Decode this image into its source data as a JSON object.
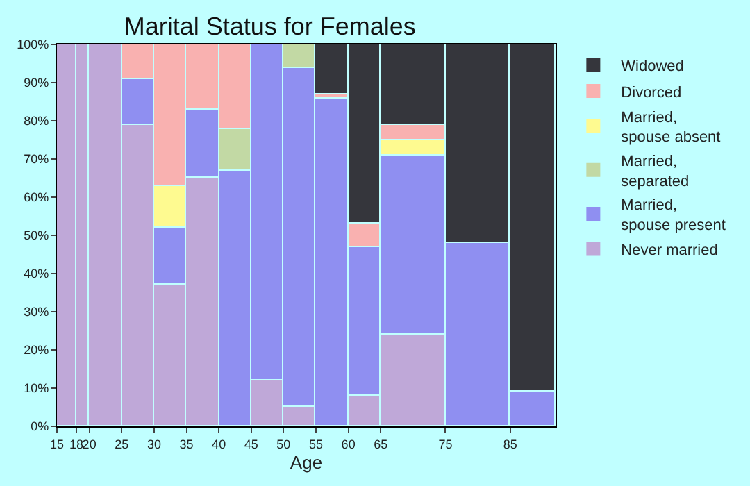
{
  "chart_data": {
    "type": "bar",
    "title": "Marital Status for Females",
    "xlabel": "Age",
    "stacked": true,
    "x": [
      16.5,
      19,
      22.5,
      27.5,
      32.5,
      37.5,
      42.5,
      47.5,
      52.5,
      57.5,
      62.5,
      70,
      80,
      88.5
    ],
    "series": [
      {
        "name": "Never married",
        "color": "#bfa8d8",
        "values": [
          100,
          100,
          100,
          79,
          37,
          65,
          null,
          12,
          5,
          null,
          8,
          24,
          null,
          null
        ]
      },
      {
        "name": "Married, spouse present",
        "color": "#8f8ff1",
        "values": [
          null,
          null,
          null,
          12,
          15,
          18,
          67,
          88,
          89,
          86,
          39,
          47,
          48,
          9
        ]
      },
      {
        "name": "Married, separated",
        "color": "#c2d9a4",
        "values": [
          null,
          null,
          null,
          null,
          null,
          null,
          11,
          null,
          6,
          null,
          null,
          null,
          null,
          null
        ]
      },
      {
        "name": "Married, spouse absent",
        "color": "#fefa90",
        "values": [
          null,
          null,
          null,
          null,
          11,
          null,
          null,
          null,
          null,
          null,
          null,
          4,
          null,
          null
        ]
      },
      {
        "name": "Divorced",
        "color": "#f9b1b0",
        "values": [
          null,
          null,
          null,
          9,
          37,
          17,
          22,
          null,
          null,
          1,
          6,
          4,
          null,
          null
        ]
      },
      {
        "name": "Widowed",
        "color": "#35363c",
        "values": [
          null,
          null,
          null,
          null,
          null,
          null,
          null,
          null,
          null,
          13,
          47,
          21,
          52,
          91
        ]
      }
    ],
    "xlim": [
      15,
      92
    ],
    "xticks": [
      15,
      18,
      20,
      25,
      30,
      35,
      40,
      45,
      50,
      55,
      60,
      65,
      75,
      85
    ],
    "ylim": [
      0,
      100
    ],
    "yticks": [
      {
        "value": 0,
        "label": "0%"
      },
      {
        "value": 10,
        "label": "10%"
      },
      {
        "value": 20,
        "label": "20%"
      },
      {
        "value": 30,
        "label": "30%"
      },
      {
        "value": 40,
        "label": "40%"
      },
      {
        "value": 50,
        "label": "50%"
      },
      {
        "value": 60,
        "label": "60%"
      },
      {
        "value": 70,
        "label": "70%"
      },
      {
        "value": 80,
        "label": "80%"
      },
      {
        "value": 90,
        "label": "90%"
      },
      {
        "value": 100,
        "label": "100%"
      }
    ],
    "legend": "right"
  }
}
